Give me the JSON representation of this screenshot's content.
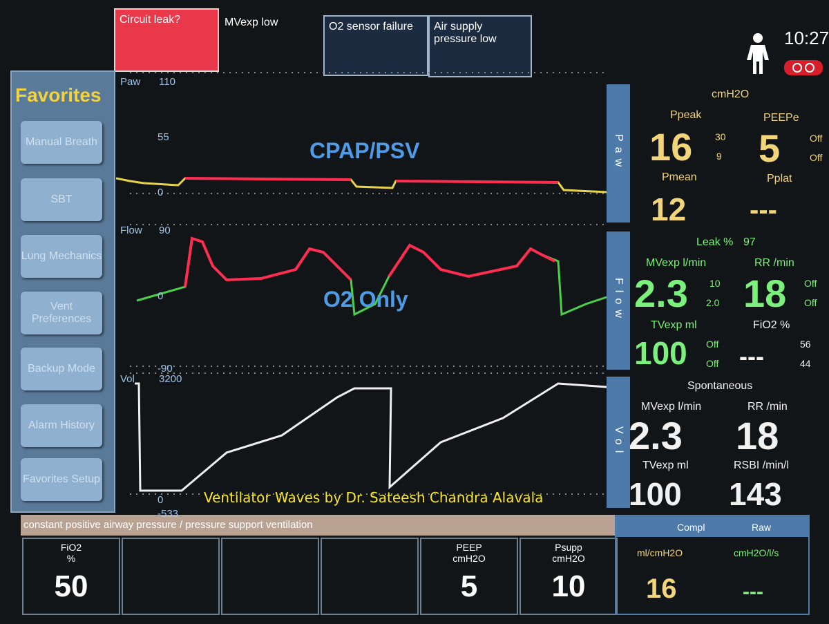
{
  "alarms": {
    "circuit_leak": "Circuit leak?",
    "mvexp_low": "MVexp low",
    "o2_sensor": "O2 sensor failure",
    "air_supply": "Air supply pressure low"
  },
  "clock": "10:27",
  "favorites": {
    "title": "Favorites",
    "buttons": [
      "Manual Breath",
      "SBT",
      "Lung Mechanics",
      "Vent Preferences",
      "Backup Mode",
      "Alarm History",
      "Favorites Setup"
    ]
  },
  "waveforms": [
    {
      "label": "Paw",
      "scale": [
        "110",
        "55",
        "0"
      ],
      "annotation": "CPAP/PSV"
    },
    {
      "label": "Flow",
      "scale": [
        "90",
        "0",
        "-90"
      ],
      "annotation": "O2 Only"
    },
    {
      "label": "Vol",
      "scale": [
        "3200",
        "0",
        "-533"
      ]
    }
  ],
  "watermark": "Ventilator Waves by Dr. Sateesh Chandra Alavala",
  "mode_text": "constant positive airway pressure / pressure support ventilation",
  "settings": [
    {
      "name": "FiO2",
      "unit": "%",
      "value": "50"
    },
    {
      "name": "PEEP",
      "unit": "cmH2O",
      "value": "5"
    },
    {
      "name": "Psupp",
      "unit": "cmH2O",
      "value": "10"
    }
  ],
  "monitor": {
    "units": "cmH2O",
    "ppeak": {
      "label": "Ppeak",
      "value": "16",
      "high": "30",
      "low": "9"
    },
    "peepe": {
      "label": "PEEPe",
      "value": "5",
      "high": "Off",
      "low": "Off"
    },
    "pmean": {
      "label": "Pmean",
      "value": "12"
    },
    "pplat": {
      "label": "Pplat",
      "value": "---"
    },
    "leak": {
      "label": "Leak %",
      "value": "97"
    },
    "mvexp": {
      "label": "MVexp l/min",
      "value": "2.3",
      "high": "10",
      "low": "2.0"
    },
    "rr": {
      "label": "RR /min",
      "value": "18",
      "high": "Off",
      "low": "Off"
    },
    "tvexp": {
      "label": "TVexp ml",
      "value": "100",
      "high": "Off",
      "low": "Off"
    },
    "fio2": {
      "label": "FiO2 %",
      "value": "---",
      "high": "56",
      "low": "44"
    }
  },
  "spontaneous": {
    "title": "Spontaneous",
    "mvexp": {
      "label": "MVexp l/min",
      "value": "2.3"
    },
    "rr": {
      "label": "RR /min",
      "value": "18"
    },
    "tvexp": {
      "label": "TVexp ml",
      "value": "100"
    },
    "rsbi": {
      "label": "RSBI /min/l",
      "value": "143"
    }
  },
  "mechanics": {
    "compl": {
      "label": "Compl",
      "unit": "ml/cmH2O",
      "value": "16"
    },
    "raw": {
      "label": "Raw",
      "unit": "cmH2O/l/s",
      "value": "---"
    }
  }
}
